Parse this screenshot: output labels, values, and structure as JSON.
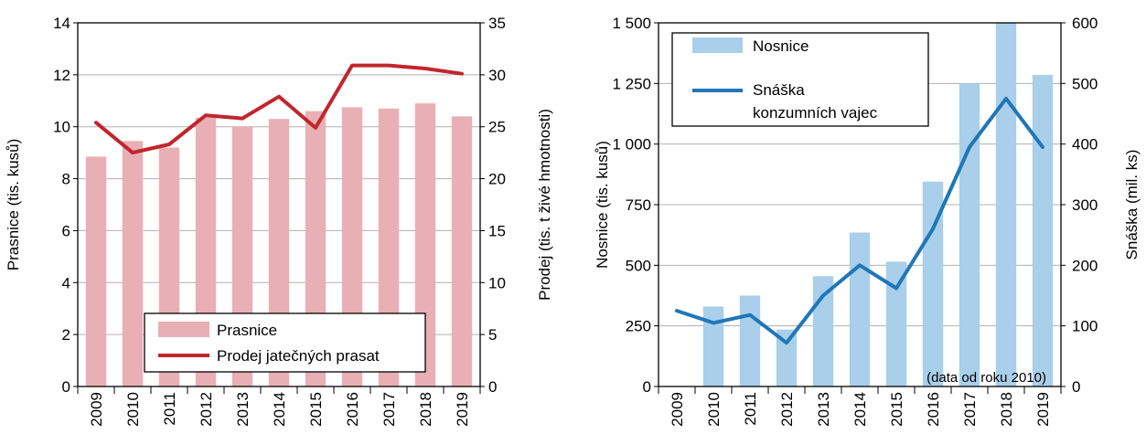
{
  "chart_data": [
    {
      "type": "bar+line",
      "categories": [
        "2009",
        "2010",
        "2011",
        "2012",
        "2013",
        "2014",
        "2015",
        "2016",
        "2017",
        "2018",
        "2019"
      ],
      "series": [
        {
          "name": "Prasnice",
          "kind": "bar",
          "axis": "left",
          "color": "#e8b0b4",
          "values": [
            8.85,
            9.45,
            9.2,
            10.35,
            10.0,
            10.3,
            10.6,
            10.75,
            10.7,
            10.9,
            10.4
          ]
        },
        {
          "name": "Prodej jatečných prasat",
          "kind": "line",
          "axis": "right",
          "color": "#c0262d",
          "values": [
            25.4,
            22.5,
            23.3,
            26.1,
            25.8,
            27.9,
            24.9,
            30.9,
            30.9,
            30.6,
            30.1
          ]
        }
      ],
      "ylabel_left": "Prasnice (tis. kusů)",
      "ylabel_right": "Prodej (tis. t živé hmotnosti)",
      "ylim_left": [
        0,
        14
      ],
      "yticks_left": [
        "0",
        "2",
        "4",
        "6",
        "8",
        "10",
        "12",
        "14"
      ],
      "ylim_right": [
        0,
        35
      ],
      "yticks_right": [
        "0",
        "5",
        "10",
        "15",
        "20",
        "25",
        "30",
        "35"
      ],
      "grid": true,
      "legend_position": "bottom-right",
      "legend": [
        "Prasnice",
        "Prodej jatečných prasat"
      ]
    },
    {
      "type": "bar+line",
      "categories": [
        "2009",
        "2010",
        "2011",
        "2012",
        "2013",
        "2014",
        "2015",
        "2016",
        "2017",
        "2018",
        "2019"
      ],
      "series": [
        {
          "name": "Nosnice",
          "kind": "bar",
          "axis": "left",
          "color": "#a9cfea",
          "values": [
            null,
            330,
            375,
            235,
            455,
            635,
            515,
            845,
            1250,
            1500,
            1285
          ]
        },
        {
          "name": "Snáška konzumních vajec",
          "kind": "line",
          "axis": "right",
          "color": "#1f77b8",
          "values": [
            125,
            105,
            118,
            72,
            150,
            200,
            162,
            260,
            395,
            475,
            395
          ]
        }
      ],
      "ylabel_left": "Nosnice (tis. kusů)",
      "ylabel_right": "Snáška (mil. ks)",
      "ylim_left": [
        0,
        1500
      ],
      "yticks_left": [
        "0",
        "250",
        "500",
        "750",
        "1 000",
        "1 250",
        "1 500"
      ],
      "ylim_right": [
        0,
        600
      ],
      "yticks_right": [
        "0",
        "100",
        "200",
        "300",
        "400",
        "500",
        "600"
      ],
      "grid": true,
      "legend_position": "top-left",
      "legend": [
        "Nosnice",
        "Snáška",
        "konzumních vajec"
      ],
      "annotation": "(data od roku 2010)"
    }
  ]
}
